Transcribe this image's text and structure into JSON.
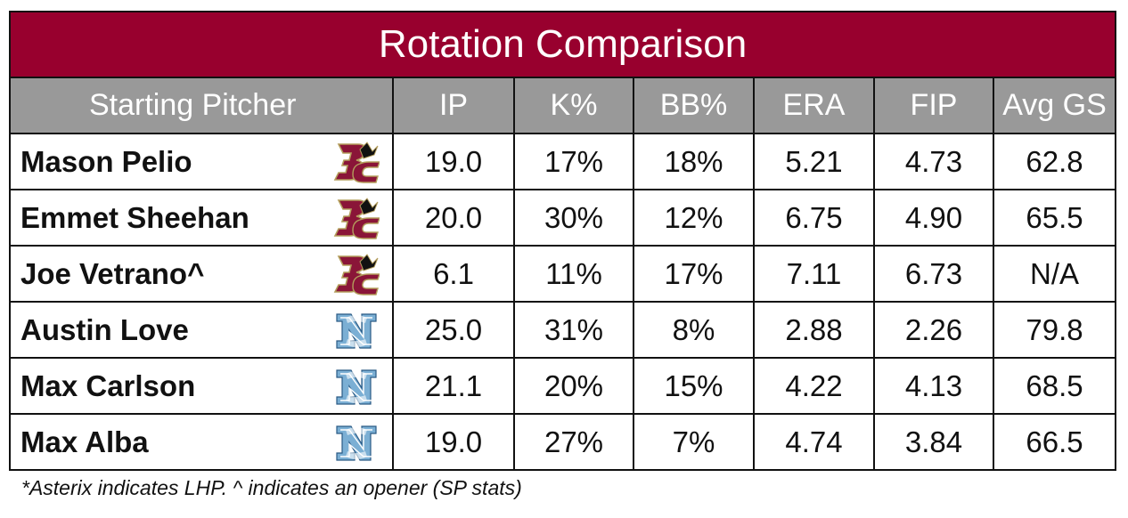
{
  "title": "Rotation Comparison",
  "columns": [
    "Starting Pitcher",
    "IP",
    "K%",
    "BB%",
    "ERA",
    "FIP",
    "Avg GS"
  ],
  "rows": [
    {
      "name": "Mason Pelio",
      "team_logo": "bc-logo",
      "ip": "19.0",
      "k_pct": "17%",
      "bb_pct": "18%",
      "era": "5.21",
      "fip": "4.73",
      "avg_gs": "62.8"
    },
    {
      "name": "Emmet Sheehan",
      "team_logo": "bc-logo",
      "ip": "20.0",
      "k_pct": "30%",
      "bb_pct": "12%",
      "era": "6.75",
      "fip": "4.90",
      "avg_gs": "65.5"
    },
    {
      "name": "Joe Vetrano^",
      "team_logo": "bc-logo",
      "ip": "6.1",
      "k_pct": "11%",
      "bb_pct": "17%",
      "era": "7.11",
      "fip": "6.73",
      "avg_gs": "N/A"
    },
    {
      "name": "Austin Love",
      "team_logo": "unc-logo",
      "ip": "25.0",
      "k_pct": "31%",
      "bb_pct": "8%",
      "era": "2.88",
      "fip": "2.26",
      "avg_gs": "79.8"
    },
    {
      "name": "Max Carlson",
      "team_logo": "unc-logo",
      "ip": "21.1",
      "k_pct": "20%",
      "bb_pct": "15%",
      "era": "4.22",
      "fip": "4.13",
      "avg_gs": "68.5"
    },
    {
      "name": "Max Alba",
      "team_logo": "unc-logo",
      "ip": "19.0",
      "k_pct": "27%",
      "bb_pct": "7%",
      "era": "4.74",
      "fip": "3.84",
      "avg_gs": "66.5"
    }
  ],
  "footnote": "*Asterix indicates LHP. ^ indicates an opener (SP stats)",
  "colors": {
    "title_bg": "#98002e",
    "header_bg": "#999999",
    "bc_maroon": "#8a1538",
    "bc_gold": "#b39d5b",
    "unc_blue": "#7bafd4"
  }
}
